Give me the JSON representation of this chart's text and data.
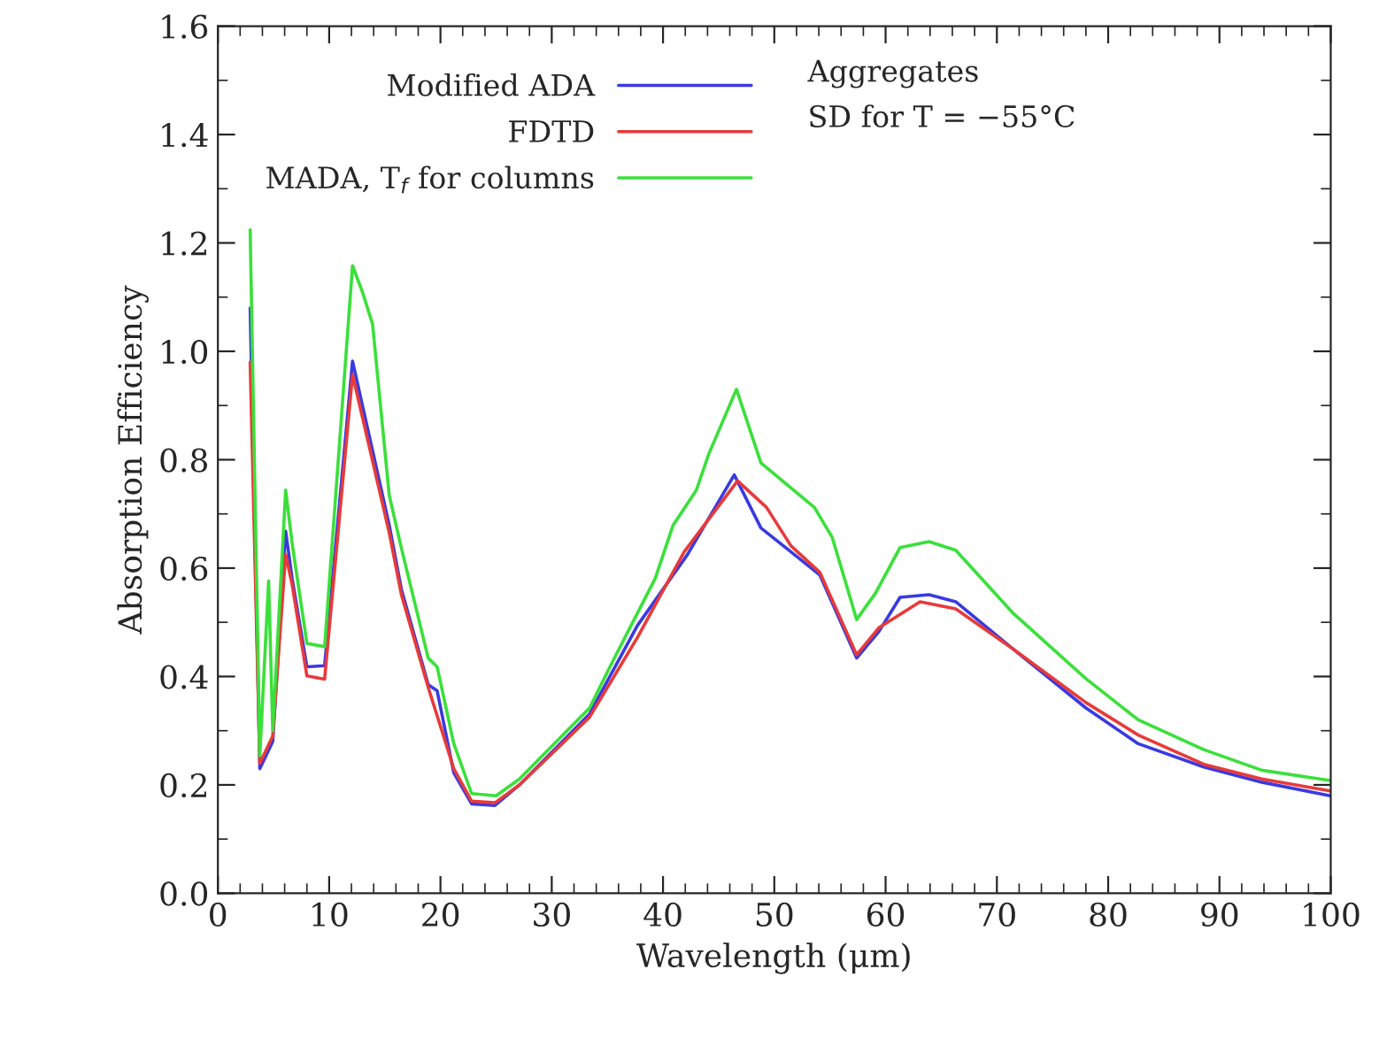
{
  "chart_data": {
    "type": "line",
    "xlabel": "Wavelength (μm)",
    "ylabel": "Absorption Efficiency",
    "annotations": [
      "Aggregates",
      "SD for T = −55°C"
    ],
    "xlim": [
      0,
      100
    ],
    "ylim": [
      0,
      1.6
    ],
    "xticks": [
      0,
      10,
      20,
      30,
      40,
      50,
      60,
      70,
      80,
      90,
      100
    ],
    "yticks": [
      {
        "value": 0,
        "label": "0.0"
      },
      {
        "value": 0.2,
        "label": "0.2"
      },
      {
        "value": 0.4,
        "label": "0.4"
      },
      {
        "value": 0.6,
        "label": "0.6"
      },
      {
        "value": 0.8,
        "label": "0.8"
      },
      {
        "value": 1.0,
        "label": "1.0"
      },
      {
        "value": 1.2,
        "label": "1.2"
      },
      {
        "value": 1.4,
        "label": "1.4"
      },
      {
        "value": 1.6,
        "label": "1.6"
      }
    ],
    "grid": false,
    "legend": "top left",
    "marker": "none",
    "line_style": "solid",
    "series": [
      {
        "name": "Modified ADA",
        "color": "#3a3ae0",
        "x": [
          2.9,
          3.77,
          4.56,
          4.93,
          6.09,
          6.67,
          8.0,
          9.59,
          12.1,
          15.4,
          16.5,
          18.9,
          19.7,
          21.2,
          22.8,
          24.9,
          27.1,
          33.4,
          37.7,
          42.2,
          46.4,
          48.8,
          51.5,
          54.1,
          57.4,
          59.4,
          61.3,
          63.9,
          66.3,
          71.5,
          78.0,
          82.7,
          88.6,
          93.8,
          99.95
        ],
        "values": [
          1.08,
          0.23,
          null,
          0.28,
          0.668,
          0.581,
          0.418,
          0.42,
          0.982,
          0.679,
          0.56,
          0.385,
          0.374,
          0.222,
          0.165,
          0.162,
          0.2,
          0.331,
          0.494,
          0.625,
          0.772,
          0.674,
          0.63,
          0.587,
          0.434,
          0.483,
          0.546,
          0.551,
          0.538,
          0.45,
          0.342,
          0.276,
          0.233,
          0.205,
          0.18
        ]
      },
      {
        "name": "FDTD",
        "color": "#e83a3a",
        "x": [
          2.9,
          3.77,
          4.56,
          4.93,
          6.09,
          6.67,
          8.0,
          9.59,
          12.1,
          15.4,
          16.5,
          18.9,
          21.2,
          22.8,
          24.9,
          27.1,
          33.4,
          37.7,
          41.9,
          46.7,
          49.3,
          51.5,
          54.1,
          57.4,
          59.4,
          63.1,
          66.3,
          71.5,
          78.0,
          82.7,
          88.6,
          93.8,
          99.95
        ],
        "values": [
          0.98,
          0.24,
          null,
          0.29,
          0.625,
          0.57,
          0.401,
          0.395,
          0.957,
          0.665,
          0.55,
          0.38,
          0.23,
          0.17,
          0.167,
          0.2,
          0.325,
          0.472,
          0.63,
          0.761,
          0.712,
          0.641,
          0.592,
          0.44,
          0.49,
          0.538,
          0.525,
          0.45,
          0.352,
          0.292,
          0.238,
          0.211,
          0.189
        ]
      },
      {
        "name": "MADA, T$_{f}$ for columns",
        "color": "#3ae03a",
        "x": [
          2.9,
          3.77,
          4.56,
          4.93,
          6.09,
          6.67,
          8.0,
          9.59,
          12.1,
          13.0,
          13.9,
          15.4,
          16.5,
          18.9,
          19.7,
          21.2,
          22.8,
          25.0,
          27.1,
          33.4,
          35.5,
          39.3,
          40.9,
          43.0,
          44.1,
          46.6,
          48.8,
          53.6,
          55.2,
          57.4,
          59.1,
          61.3,
          63.9,
          66.3,
          71.5,
          78.0,
          82.7,
          88.6,
          93.8,
          99.95
        ],
        "values": [
          1.224,
          0.254,
          0.576,
          0.3,
          0.744,
          0.646,
          0.461,
          0.455,
          1.158,
          1.109,
          1.05,
          0.734,
          0.636,
          0.434,
          0.418,
          0.276,
          0.184,
          0.18,
          0.211,
          0.342,
          0.429,
          0.581,
          0.679,
          0.744,
          0.81,
          0.93,
          0.794,
          0.712,
          0.657,
          0.505,
          0.554,
          0.638,
          0.649,
          0.633,
          0.516,
          0.396,
          0.32,
          0.265,
          0.227,
          0.208
        ]
      }
    ]
  }
}
